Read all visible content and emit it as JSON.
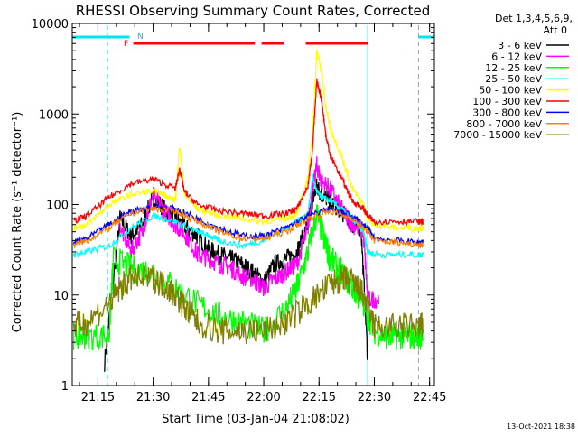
{
  "chart_data": {
    "type": "line",
    "title": "RHESSI Observing Summary Count Rates, Corrected",
    "xlabel": "Start Time (03-Jan-04 21:08:02)",
    "ylabel": "Corrected Count Rate (s⁻¹ detector⁻¹)",
    "footer_timestamp": "13-Oct-2021 18:38",
    "xlim": [
      21.1339,
      22.7717
    ],
    "ylim": [
      1,
      10000
    ],
    "y_scale": "log",
    "x_ticks": [
      {
        "t": 21.25,
        "label": "21:15"
      },
      {
        "t": 21.5,
        "label": "21:30"
      },
      {
        "t": 21.75,
        "label": "21:45"
      },
      {
        "t": 22.0,
        "label": "22:00"
      },
      {
        "t": 22.25,
        "label": "22:15"
      },
      {
        "t": 22.5,
        "label": "22:30"
      },
      {
        "t": 22.75,
        "label": "22:45"
      }
    ],
    "y_ticks": [
      {
        "v": 1,
        "label": "1"
      },
      {
        "v": 10,
        "label": "10"
      },
      {
        "v": 100,
        "label": "100"
      },
      {
        "v": 1000,
        "label": "1000"
      },
      {
        "v": 10000,
        "label": "10000"
      }
    ],
    "legend_header": [
      "Det 1,3,4,5,6,9,",
      "Att 0"
    ],
    "legend_position": "right",
    "flag_labels": {
      "f": "F",
      "n": "N"
    },
    "flag_bars": {
      "night": [
        [
          21.1339,
          21.3933
        ],
        [
          22.7,
          22.7717
        ]
      ],
      "flare": [
        [
          21.41,
          21.96
        ],
        [
          21.99,
          22.09
        ],
        [
          22.19,
          22.47
        ]
      ]
    },
    "vlines": [
      {
        "t": 21.1339,
        "style": "solid"
      },
      {
        "t": 21.2933,
        "style": "dashed"
      },
      {
        "t": 22.47,
        "style": "solid"
      },
      {
        "t": 22.7,
        "style": "dashed"
      }
    ],
    "series": [
      {
        "name": "3 - 6 keV",
        "color": "#000000",
        "x": [
          21.14,
          21.2,
          21.28,
          21.35,
          21.4,
          21.45,
          21.5,
          21.55,
          21.6,
          21.65,
          21.7,
          21.75,
          21.8,
          21.85,
          21.9,
          21.95,
          22.0,
          22.05,
          22.1,
          22.15,
          22.2,
          22.22,
          22.24,
          22.26,
          22.3,
          22.35,
          22.4,
          22.44,
          22.47
        ],
        "y": [
          null,
          null,
          1.8,
          70,
          45,
          60,
          120,
          90,
          70,
          55,
          45,
          32,
          28,
          25,
          22,
          18,
          14,
          22,
          25,
          30,
          60,
          110,
          160,
          130,
          110,
          85,
          60,
          55,
          2
        ]
      },
      {
        "name": "6 - 12 keV",
        "color": "#ff00ff",
        "x": [
          21.28,
          21.35,
          21.4,
          21.45,
          21.5,
          21.55,
          21.6,
          21.65,
          21.7,
          21.75,
          21.8,
          21.85,
          21.9,
          21.95,
          22.0,
          22.05,
          22.1,
          22.15,
          22.2,
          22.22,
          22.24,
          22.26,
          22.3,
          22.35,
          22.4,
          22.45,
          22.47,
          22.52
        ],
        "y": [
          null,
          55,
          30,
          50,
          130,
          85,
          60,
          45,
          28,
          25,
          22,
          20,
          16,
          15,
          12,
          15,
          18,
          22,
          55,
          140,
          270,
          180,
          150,
          90,
          60,
          50,
          9,
          9
        ]
      },
      {
        "name": "12 - 25 keV",
        "color": "#00ff00",
        "x": [
          21.14,
          21.2,
          21.3,
          21.32,
          21.4,
          21.5,
          21.6,
          21.7,
          21.8,
          21.9,
          22.0,
          22.1,
          22.15,
          22.2,
          22.24,
          22.28,
          22.3,
          22.35,
          22.4,
          22.45,
          22.5,
          22.55,
          22.6,
          22.65,
          22.7,
          22.72
        ],
        "y": [
          3.5,
          3.5,
          3.5,
          25,
          20,
          18,
          12,
          8,
          6,
          5,
          4,
          7,
          12,
          30,
          80,
          35,
          25,
          18,
          12,
          8,
          4,
          3.5,
          3.5,
          3.5,
          3.5,
          3.5
        ]
      },
      {
        "name": "25 - 50 keV",
        "color": "#00ffff",
        "x": [
          21.14,
          21.2,
          21.3,
          21.4,
          21.5,
          21.6,
          21.7,
          21.75,
          21.8,
          21.9,
          22.0,
          22.1,
          22.15,
          22.2,
          22.22,
          22.24,
          22.26,
          22.3,
          22.35,
          22.4,
          22.45,
          22.47,
          22.5,
          22.6,
          22.7,
          22.72
        ],
        "y": [
          28,
          30,
          35,
          55,
          75,
          65,
          50,
          45,
          40,
          35,
          40,
          55,
          65,
          80,
          200,
          140,
          120,
          110,
          90,
          70,
          50,
          30,
          28,
          28,
          28,
          28
        ]
      },
      {
        "name": "50 - 100 keV",
        "color": "#ffff00",
        "x": [
          21.14,
          21.2,
          21.3,
          21.4,
          21.5,
          21.55,
          21.6,
          21.62,
          21.64,
          21.7,
          21.8,
          21.9,
          22.0,
          22.1,
          22.15,
          22.2,
          22.22,
          22.24,
          22.26,
          22.28,
          22.3,
          22.35,
          22.4,
          22.45,
          22.47,
          22.5,
          22.6,
          22.7,
          22.72
        ],
        "y": [
          55,
          60,
          100,
          130,
          140,
          130,
          110,
          450,
          130,
          90,
          75,
          70,
          65,
          70,
          80,
          200,
          600,
          5000,
          3000,
          1200,
          700,
          350,
          150,
          100,
          70,
          60,
          55,
          55,
          55
        ]
      },
      {
        "name": "100 - 300 keV",
        "color": "#ff0000",
        "x": [
          21.14,
          21.2,
          21.3,
          21.4,
          21.5,
          21.6,
          21.62,
          21.64,
          21.7,
          21.8,
          21.9,
          22.0,
          22.1,
          22.15,
          22.2,
          22.22,
          22.24,
          22.26,
          22.28,
          22.3,
          22.35,
          22.4,
          22.45,
          22.47,
          22.5,
          22.6,
          22.7,
          22.72
        ],
        "y": [
          65,
          75,
          120,
          170,
          190,
          150,
          250,
          140,
          100,
          85,
          80,
          75,
          80,
          90,
          160,
          400,
          2300,
          1500,
          600,
          350,
          200,
          110,
          90,
          75,
          65,
          65,
          65,
          65
        ]
      },
      {
        "name": "300 - 800 keV",
        "color": "#0000ff",
        "x": [
          21.14,
          21.2,
          21.3,
          21.4,
          21.5,
          21.6,
          21.7,
          21.8,
          21.9,
          22.0,
          22.1,
          22.2,
          22.3,
          22.4,
          22.47,
          22.5,
          22.6,
          22.7,
          22.72
        ],
        "y": [
          38,
          42,
          60,
          85,
          95,
          90,
          70,
          55,
          45,
          45,
          55,
          75,
          90,
          75,
          55,
          42,
          40,
          38,
          38
        ]
      },
      {
        "name": "800 - 7000 keV",
        "color": "#ff8000",
        "x": [
          21.14,
          21.2,
          21.3,
          21.4,
          21.5,
          21.6,
          21.7,
          21.8,
          21.9,
          22.0,
          22.1,
          22.2,
          22.3,
          22.4,
          22.47,
          22.5,
          22.6,
          22.7,
          22.72
        ],
        "y": [
          36,
          40,
          55,
          80,
          90,
          85,
          65,
          50,
          42,
          42,
          50,
          70,
          85,
          70,
          50,
          40,
          38,
          36,
          36
        ]
      },
      {
        "name": "7000 - 15000 keV",
        "color": "#808000",
        "x": [
          21.14,
          21.2,
          21.3,
          21.35,
          21.4,
          21.5,
          21.55,
          21.6,
          21.65,
          21.7,
          21.8,
          21.9,
          22.0,
          22.1,
          22.2,
          22.3,
          22.35,
          22.4,
          22.45,
          22.5,
          22.6,
          22.7,
          22.72
        ],
        "y": [
          4.5,
          5,
          8,
          12,
          15,
          15,
          13,
          10,
          7,
          5,
          4,
          4,
          4,
          5,
          8,
          13,
          15,
          14,
          10,
          4.5,
          4.5,
          4.5,
          4.5
        ]
      }
    ]
  }
}
